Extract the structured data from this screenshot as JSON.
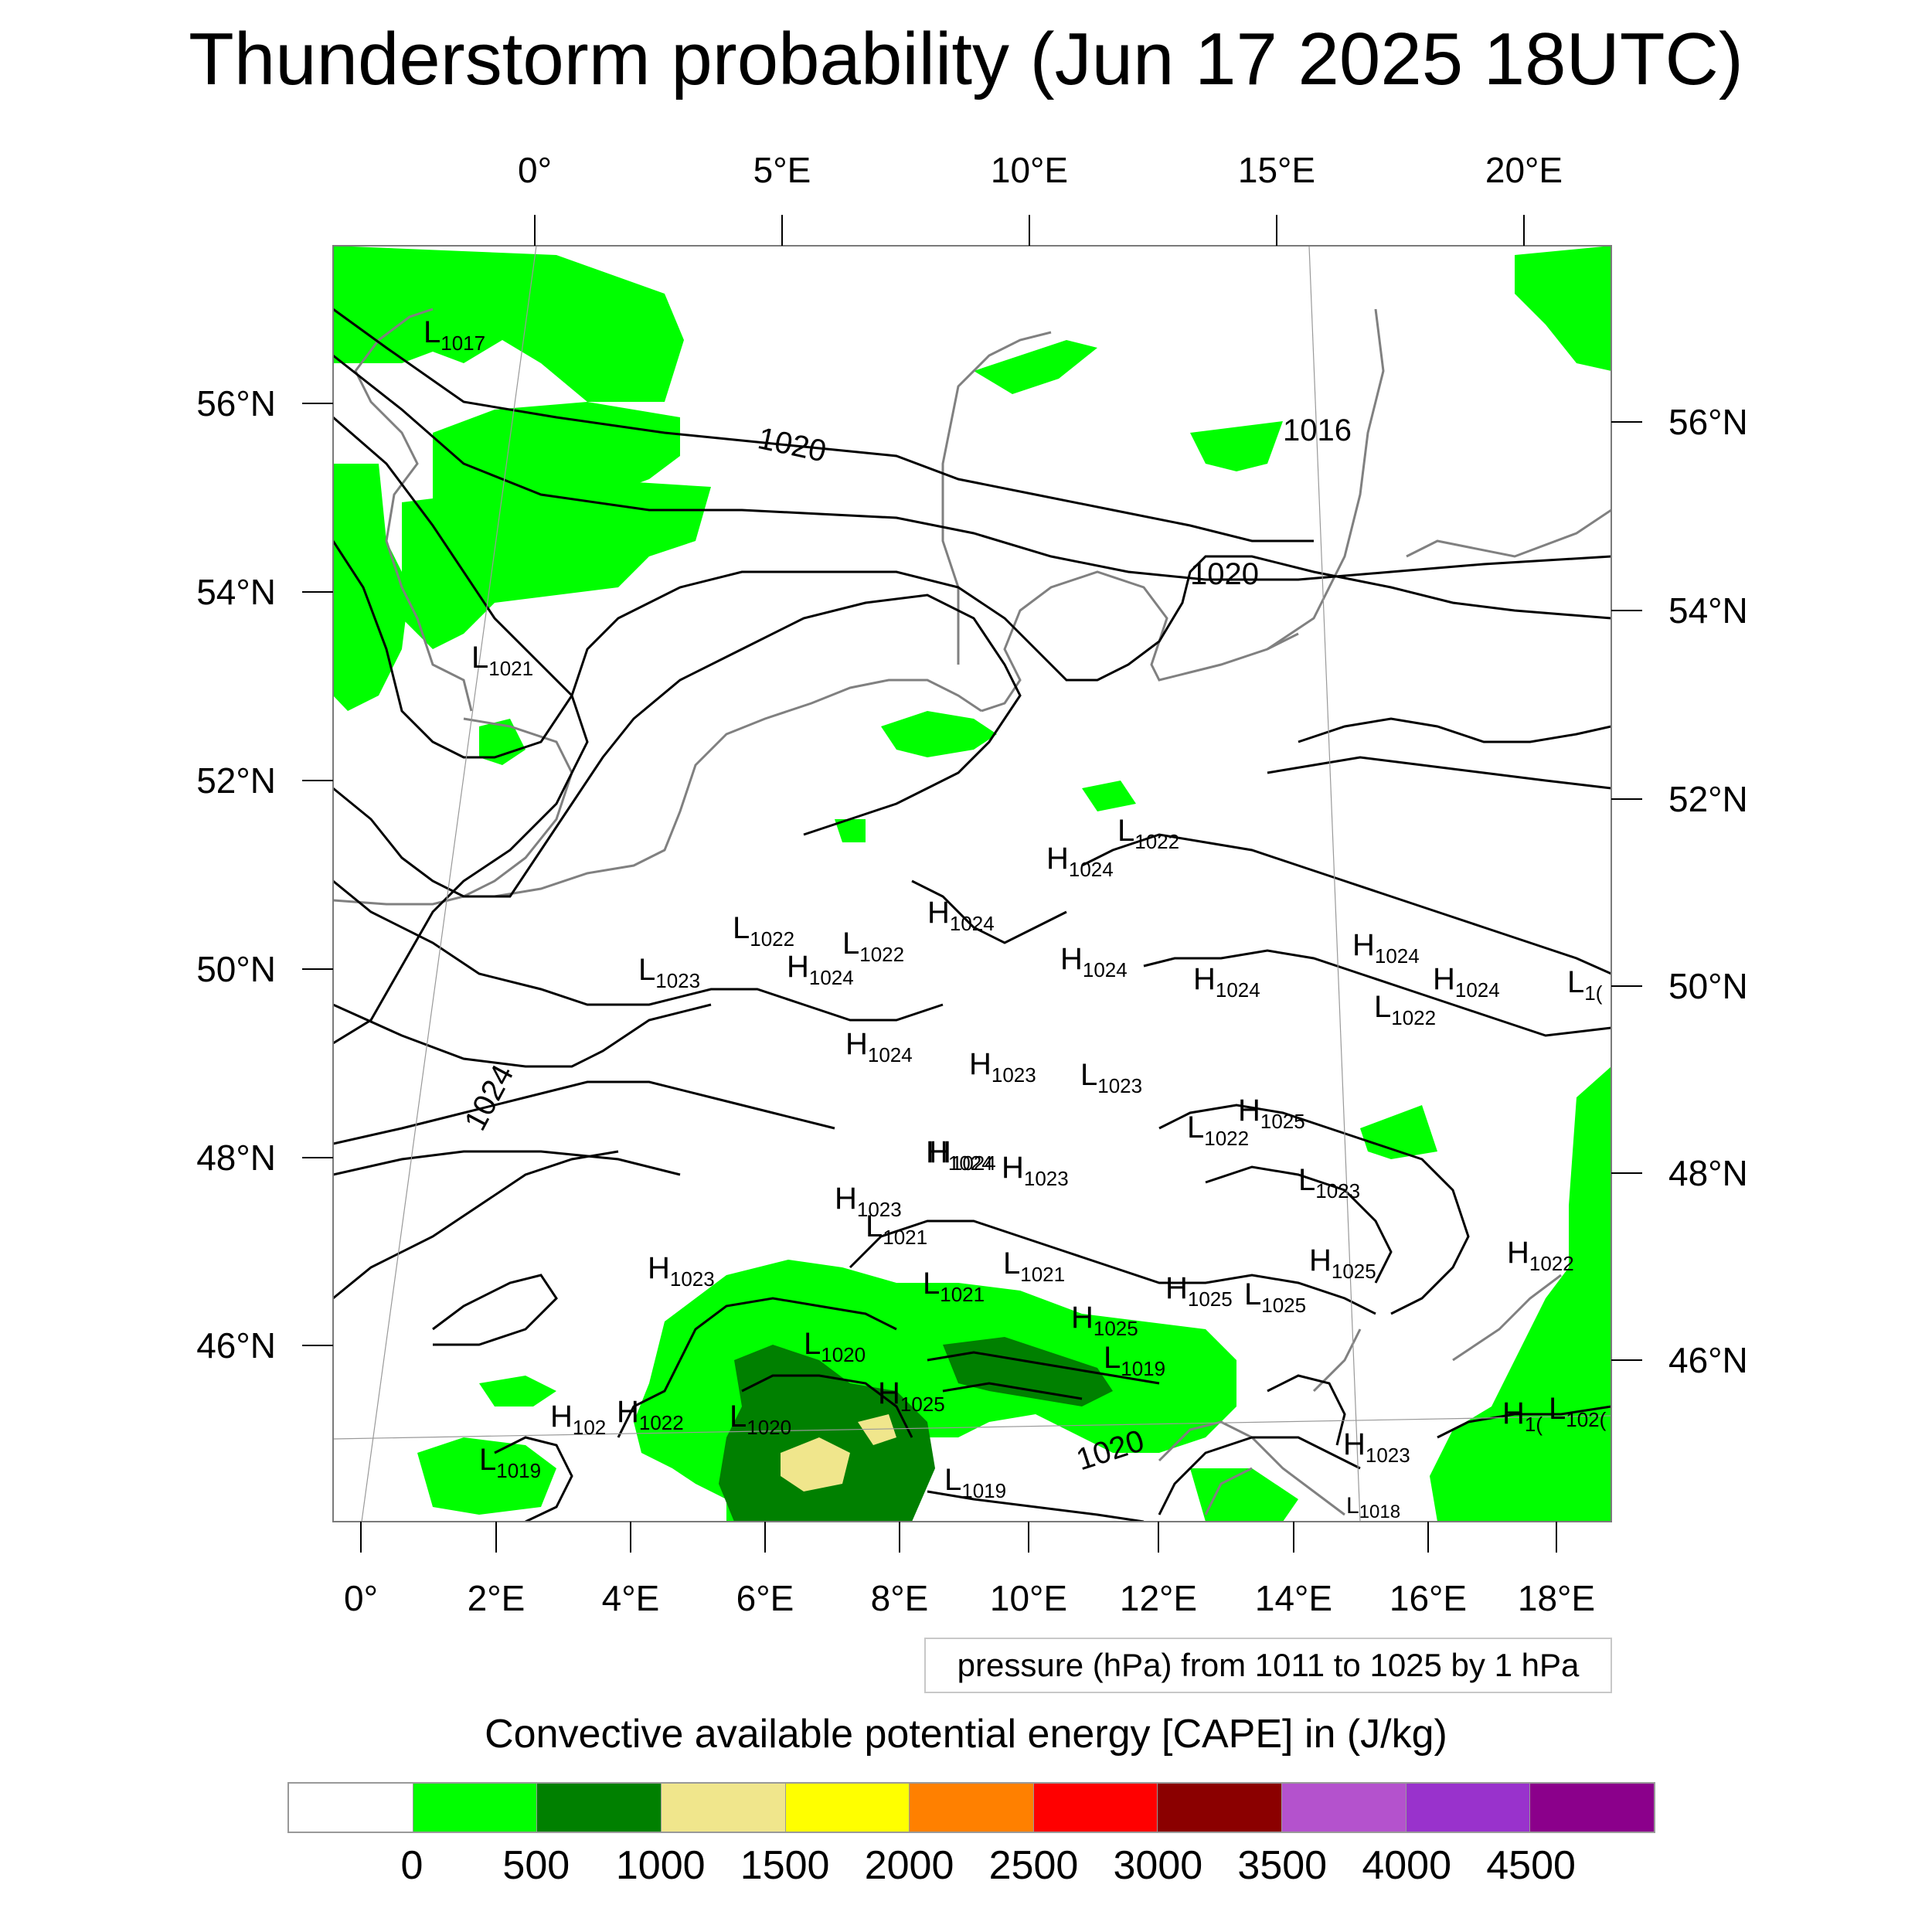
{
  "title": "Thunderstorm probability (Jun 17 2025 18UTC)",
  "axes": {
    "top_lon_labels": [
      "0°",
      "5°E",
      "10°E",
      "15°E",
      "20°E"
    ],
    "bottom_lon_labels": [
      "0°",
      "2°E",
      "4°E",
      "6°E",
      "8°E",
      "10°E",
      "12°E",
      "14°E",
      "16°E",
      "18°E"
    ],
    "left_lat_labels": [
      "56°N",
      "54°N",
      "52°N",
      "50°N",
      "48°N",
      "46°N"
    ],
    "right_lat_labels": [
      "56°N",
      "54°N",
      "52°N",
      "50°N",
      "48°N",
      "46°N"
    ]
  },
  "isobar_labels": [
    "1020",
    "1016",
    "1020",
    "1024",
    "1020"
  ],
  "pressure_centers": [
    {
      "type": "L",
      "value": "1017"
    },
    {
      "type": "L",
      "value": "1021"
    },
    {
      "type": "L",
      "value": "1022"
    },
    {
      "type": "H",
      "value": "1024"
    },
    {
      "type": "L",
      "value": "1022"
    },
    {
      "type": "L",
      "value": "1022"
    },
    {
      "type": "H",
      "value": "1024"
    },
    {
      "type": "L",
      "value": "1023"
    },
    {
      "type": "H",
      "value": "1024"
    },
    {
      "type": "H",
      "value": "1024"
    },
    {
      "type": "H",
      "value": "1024"
    },
    {
      "type": "H",
      "value": "1024"
    },
    {
      "type": "H",
      "value": "1024"
    },
    {
      "type": "L",
      "value": "1022"
    },
    {
      "type": "H",
      "value": "1024"
    },
    {
      "type": "H",
      "value": "1024"
    },
    {
      "type": "H",
      "value": "1023"
    },
    {
      "type": "L",
      "value": "1023"
    },
    {
      "type": "H",
      "value": "1025"
    },
    {
      "type": "L",
      "value": "1022"
    },
    {
      "type": "H",
      "value": "1024"
    },
    {
      "type": "H",
      "value": "1023"
    },
    {
      "type": "H",
      "value": "1023"
    },
    {
      "type": "L",
      "value": "1023"
    },
    {
      "type": "L",
      "value": "1021"
    },
    {
      "type": "H",
      "value": "1023"
    },
    {
      "type": "L",
      "value": "1021"
    },
    {
      "type": "L",
      "value": "1021"
    },
    {
      "type": "H",
      "value": "1025"
    },
    {
      "type": "H",
      "value": "1025"
    },
    {
      "type": "L",
      "value": "1025"
    },
    {
      "type": "H",
      "value": "1025"
    },
    {
      "type": "H",
      "value": "1022"
    },
    {
      "type": "L",
      "value": "1020"
    },
    {
      "type": "L",
      "value": "1019"
    },
    {
      "type": "H",
      "value": "1025"
    },
    {
      "type": "H",
      "value": "102"
    },
    {
      "type": "H",
      "value": "1022"
    },
    {
      "type": "L",
      "value": "1020"
    },
    {
      "type": "L",
      "value": "1019"
    },
    {
      "type": "L",
      "value": "1019"
    },
    {
      "type": "H",
      "value": "1023"
    },
    {
      "type": "L",
      "value": "1018"
    },
    {
      "type": "H",
      "value": "1("
    },
    {
      "type": "L",
      "value": "102("
    },
    {
      "type": "L",
      "value": "1("
    }
  ],
  "pressure_info": "pressure (hPa) from 1011 to 1025 by 1 hPa",
  "colorbar": {
    "title": "Convective available potential energy [CAPE] in (J/kg)",
    "colors": [
      "#ffffff",
      "#00ff00",
      "#008000",
      "#f0e68c",
      "#ffff00",
      "#ff8000",
      "#ff0000",
      "#8b0000",
      "#b452cd",
      "#9932cc",
      "#8b008b"
    ],
    "labels": [
      "0",
      "500",
      "1000",
      "1500",
      "2000",
      "2500",
      "3000",
      "3500",
      "4000",
      "4500"
    ]
  },
  "colors": {
    "cape_low": "#00ff00",
    "cape_mid": "#008000",
    "cape_high": "#f0e68c",
    "coastline": "#808080",
    "isobar": "#000000"
  }
}
